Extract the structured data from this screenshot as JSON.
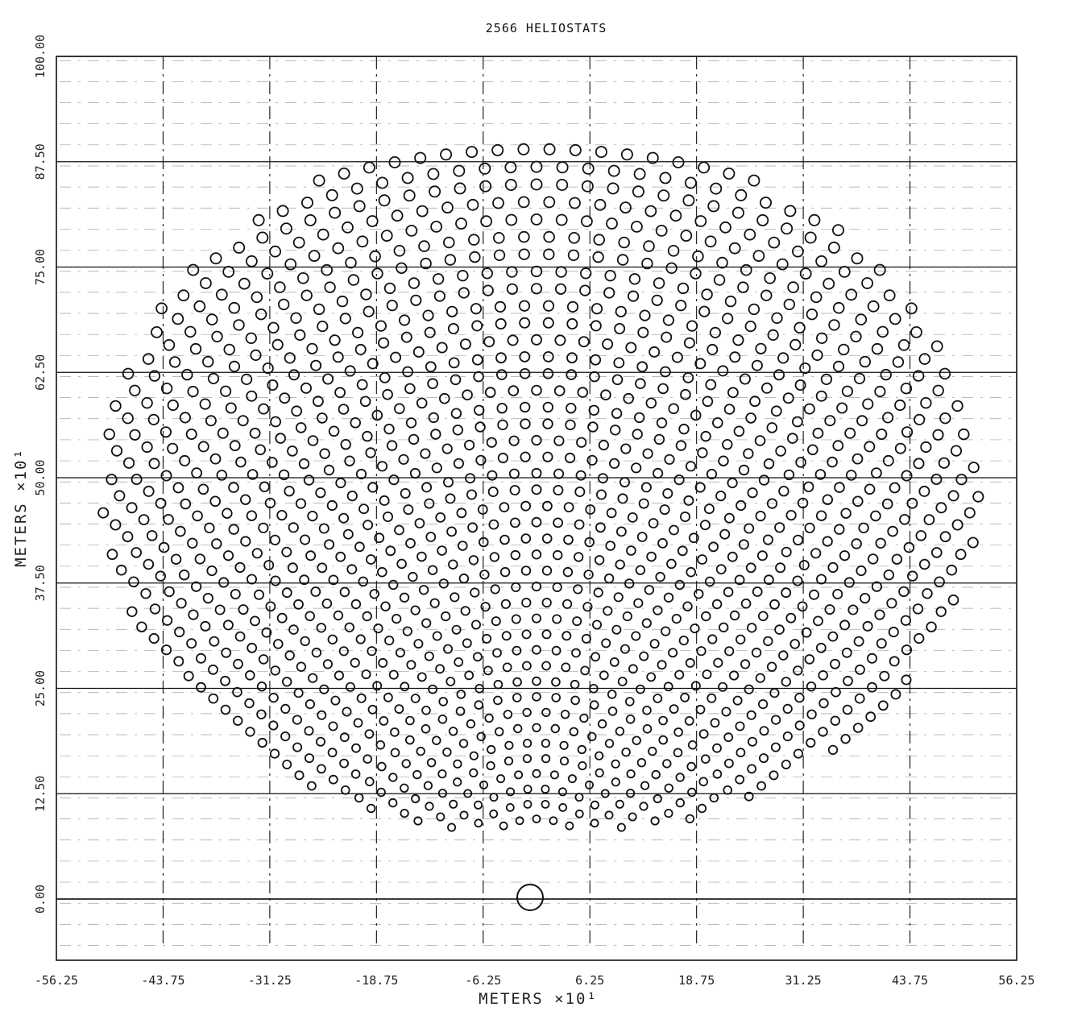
{
  "chart_data": {
    "type": "scatter",
    "title": "2566 HELIOSTATS",
    "xlabel": "METERS  ×10¹",
    "ylabel": "METERS  ×10¹",
    "x_ticks": [
      "-56.25",
      "-43.75",
      "-31.25",
      "-18.75",
      "-6.25",
      "6.25",
      "18.75",
      "31.25",
      "43.75",
      "56.25"
    ],
    "y_ticks": [
      "0.00",
      "12.50",
      "25.00",
      "37.50",
      "50.00",
      "62.50",
      "75.00",
      "87.50",
      "100.00"
    ],
    "xlim": [
      -56.25,
      56.25
    ],
    "ylim": [
      -10,
      100
    ],
    "heliostat_count": 2566,
    "tower_position": {
      "x": 0,
      "y": 0
    },
    "field_extent": {
      "x_min": -51,
      "x_max": 52,
      "y_min": 8,
      "y_max": 91
    },
    "marker": "circle",
    "grid": true,
    "colors": {
      "ink": "#111111",
      "background": "#ffffff"
    }
  }
}
